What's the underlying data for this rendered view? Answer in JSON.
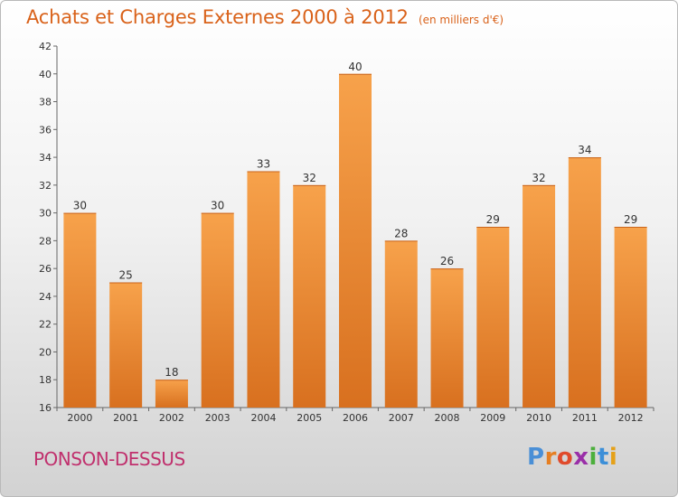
{
  "chart_data": {
    "type": "bar",
    "title": "Achats et Charges Externes 2000 à 2012",
    "unit_note": "(en milliers d'€)",
    "categories": [
      "2000",
      "2001",
      "2002",
      "2003",
      "2004",
      "2005",
      "2006",
      "2007",
      "2008",
      "2009",
      "2010",
      "2011",
      "2012"
    ],
    "values": [
      30,
      25,
      18,
      30,
      33,
      32,
      40,
      28,
      26,
      29,
      32,
      34,
      29
    ],
    "ylim": [
      16,
      42
    ],
    "yticks": [
      16,
      18,
      20,
      22,
      24,
      26,
      28,
      30,
      32,
      34,
      36,
      38,
      40,
      42
    ],
    "grid": false,
    "bar_colors": {
      "top": "#f7a24b",
      "bottom": "#d8701f"
    }
  },
  "footer": {
    "commune": "PONSON-DESSUS",
    "logo_letters": [
      "P",
      "r",
      "o",
      "x",
      "i",
      "t",
      "i"
    ],
    "logo_colors": [
      "#4a8fd6",
      "#e67f22",
      "#e04b2c",
      "#9a2fa8",
      "#4caf3c",
      "#3c8fd8",
      "#e5a119"
    ]
  }
}
